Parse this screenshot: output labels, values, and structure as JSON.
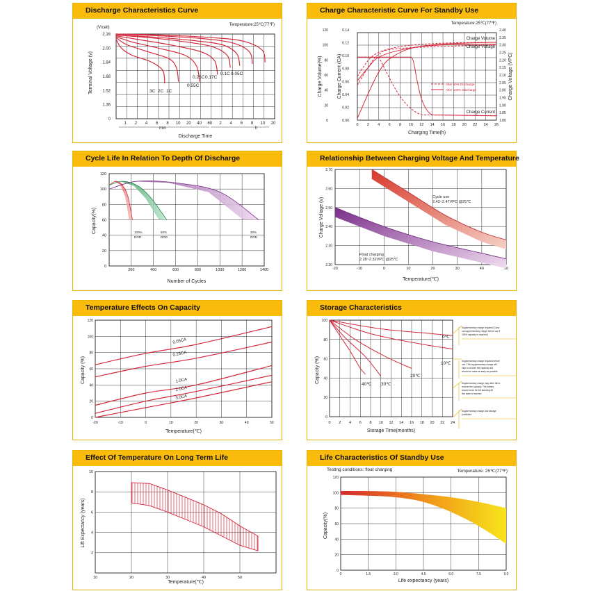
{
  "colors": {
    "header": "#f9bb0c",
    "border": "#e8b400",
    "curve": "#d6283c",
    "curve_light": "#e86a78",
    "grid": "#222222"
  },
  "panels": [
    {
      "title": "Discharge Characteristics Curve"
    },
    {
      "title": "Charge Characteristic Curve For Standby Use"
    },
    {
      "title": "Cycle Life In Relation To Depth Of Discharge"
    },
    {
      "title": "Relationship Between Charging Voltage And Temperature"
    },
    {
      "title": "Temperature Effects On Capacity"
    },
    {
      "title": "Storage Characteristics"
    },
    {
      "title": "Effect Of Temperature On Long Term Life"
    },
    {
      "title": "Life Characteristics Of Standby Use"
    }
  ],
  "chart_data": [
    {
      "id": "discharge",
      "type": "line",
      "title": "Discharge Characteristics Curve",
      "note": "Temperature:25℃(77℉)",
      "ylabel": "Terminal Voltage (v)",
      "yunit": "(V/cell)",
      "xlabel": "Discharge Time",
      "xunit_min": "min",
      "xunit_h": "h",
      "yticks": [
        "2.16",
        "2.00",
        "1.84",
        "1.68",
        "1.52",
        "1.36",
        "0"
      ],
      "xticks": [
        "1",
        "2",
        "4",
        "6",
        "8",
        "10",
        "20",
        "40",
        "60",
        "2",
        "4",
        "6",
        "8",
        "10",
        "20"
      ],
      "series": [
        {
          "name": "3C",
          "values": [
            [
              0,
              2.1
            ],
            [
              0.5,
              2.0
            ],
            [
              1.5,
              1.92
            ],
            [
              3.2,
              1.85
            ],
            [
              4.4,
              1.75
            ],
            [
              4.6,
              1.6
            ]
          ]
        },
        {
          "name": "2C",
          "values": [
            [
              0,
              2.12
            ],
            [
              1,
              2.04
            ],
            [
              3,
              1.96
            ],
            [
              5,
              1.88
            ],
            [
              5.7,
              1.78
            ],
            [
              5.9,
              1.62
            ]
          ]
        },
        {
          "name": "1C",
          "values": [
            [
              0,
              2.13
            ],
            [
              1.5,
              2.07
            ],
            [
              4,
              2.0
            ],
            [
              6.5,
              1.92
            ],
            [
              7.6,
              1.8
            ],
            [
              7.9,
              1.62
            ]
          ]
        },
        {
          "name": "0.55C",
          "values": [
            [
              0,
              2.14
            ],
            [
              2,
              2.1
            ],
            [
              5,
              2.04
            ],
            [
              8,
              1.96
            ],
            [
              9.3,
              1.86
            ],
            [
              9.6,
              1.7
            ]
          ]
        },
        {
          "name": "0.25C",
          "values": [
            [
              0,
              2.15
            ],
            [
              3,
              2.12
            ],
            [
              6,
              2.08
            ],
            [
              9,
              2.02
            ],
            [
              10.5,
              1.92
            ],
            [
              10.8,
              1.78
            ]
          ]
        },
        {
          "name": "0.17C",
          "values": [
            [
              0,
              2.15
            ],
            [
              3,
              2.13
            ],
            [
              7,
              2.09
            ],
            [
              10,
              2.04
            ],
            [
              11.4,
              1.94
            ],
            [
              11.7,
              1.8
            ]
          ]
        },
        {
          "name": "0.1C",
          "values": [
            [
              0,
              2.16
            ],
            [
              4,
              2.14
            ],
            [
              8,
              2.11
            ],
            [
              11,
              2.06
            ],
            [
              12.6,
              1.96
            ],
            [
              12.9,
              1.82
            ]
          ]
        },
        {
          "name": "0.05C",
          "values": [
            [
              0,
              2.16
            ],
            [
              4,
              2.15
            ],
            [
              9,
              2.12
            ],
            [
              12,
              2.08
            ],
            [
              13.8,
              1.98
            ],
            [
              14.1,
              1.84
            ]
          ]
        }
      ],
      "labels": [
        "3C",
        "2C",
        "1C",
        "0.55C",
        "0.25C",
        "0.17C",
        "0.1C",
        "0.05C"
      ]
    },
    {
      "id": "charge",
      "type": "line",
      "title": "Charge Characteristic Curve For Standby Use",
      "note": "Temperature:25℃(77℉)",
      "xlabel": "Charging Time(h)",
      "ylabel_left1": "Charge Volume(%)",
      "ylabel_left2": "Charge Current (CA)",
      "ylabel_right": "Charge Voltage (VPC)",
      "yticks_vol": [
        "120",
        "100",
        "80",
        "60",
        "40",
        "20",
        "0"
      ],
      "yticks_cur": [
        "0.14",
        "0.12",
        "0.10",
        "0.08",
        "0.06",
        "0.04",
        "0.02",
        "0.00"
      ],
      "yticks_volt": [
        "2.40",
        "2.35",
        "2.30",
        "2.25",
        "2.20",
        "2.15",
        "2.10",
        "2.05",
        "2.00",
        "1.95",
        "1.90",
        "1.85",
        "1.80"
      ],
      "xticks": [
        "0",
        "2",
        "4",
        "6",
        "8",
        "10",
        "12",
        "14",
        "16",
        "18",
        "20",
        "22",
        "24",
        "26"
      ],
      "annotations": [
        "Charge Volume",
        "Charge Voltage",
        "Charge Current"
      ],
      "legend": [
        "After 50% Discharge",
        "After 100% Discharge"
      ]
    },
    {
      "id": "cycle",
      "type": "area",
      "title": "Cycle Life In Relation To Depth Of Discharge",
      "ylabel": "Capacity(%)",
      "xlabel": "Number of Cycles",
      "yticks": [
        "120",
        "100",
        "80",
        "60",
        "40",
        "20",
        "0"
      ],
      "xticks": [
        "200",
        "400",
        "600",
        "800",
        "1000",
        "1200",
        "1400"
      ],
      "series": [
        {
          "name": "100% DOD",
          "values": [
            [
              0,
              105
            ],
            [
              60,
              110
            ],
            [
              120,
              105
            ],
            [
              170,
              90
            ],
            [
              210,
              60
            ]
          ]
        },
        {
          "name": "50% DOD",
          "values": [
            [
              0,
              105
            ],
            [
              120,
              110
            ],
            [
              260,
              104
            ],
            [
              380,
              88
            ],
            [
              520,
              60
            ]
          ]
        },
        {
          "name": "30% DOD",
          "values": [
            [
              0,
              100
            ],
            [
              250,
              110
            ],
            [
              600,
              108
            ],
            [
              1000,
              96
            ],
            [
              1350,
              60
            ]
          ]
        }
      ],
      "labels": [
        "100%\nDOD",
        "50%\nDOD",
        "30%\nDOD"
      ]
    },
    {
      "id": "chgvolt",
      "type": "area",
      "title": "Relationship Between Charging Voltage And Temperature",
      "ylabel": "Charge Voltage (v)",
      "xlabel": "Temperature(℃)",
      "yticks": [
        "2.70",
        "2.60",
        "2.50",
        "2.40",
        "2.30",
        "2.20"
      ],
      "xticks": [
        "-20",
        "-10",
        "0",
        "10",
        "20",
        "30",
        "40",
        "50"
      ],
      "series": [
        {
          "name": "Cycle use",
          "values": [
            [
              -5,
              2.7
            ],
            [
              10,
              2.58
            ],
            [
              25,
              2.46
            ],
            [
              40,
              2.37
            ],
            [
              50,
              2.33
            ]
          ]
        },
        {
          "name": "Float charging",
          "values": [
            [
              -20,
              2.5
            ],
            [
              0,
              2.4
            ],
            [
              20,
              2.32
            ],
            [
              40,
              2.26
            ],
            [
              50,
              2.23
            ]
          ]
        }
      ],
      "labels": [
        "Cycle use",
        "2.43~2.47VPC @25℃",
        "Float charging",
        "2.28~2.32VPC @25℃"
      ]
    },
    {
      "id": "tempcap",
      "type": "line",
      "title": "Temperature Effects On Capacity",
      "ylabel": "Capacity (%)",
      "xlabel": "Temperature(℃)",
      "yticks": [
        "120",
        "100",
        "80",
        "60",
        "40",
        "20",
        "0"
      ],
      "xticks": [
        "-20",
        "-10",
        "0",
        "10",
        "20",
        "30",
        "40",
        "50"
      ],
      "series": [
        {
          "name": "0.05CA",
          "values": [
            [
              -20,
              65
            ],
            [
              0,
              79
            ],
            [
              20,
              90
            ],
            [
              50,
              112
            ]
          ]
        },
        {
          "name": "0.25CA",
          "values": [
            [
              -20,
              50
            ],
            [
              0,
              63
            ],
            [
              20,
              73
            ],
            [
              50,
              93
            ]
          ]
        },
        {
          "name": "1.0CA",
          "values": [
            [
              -20,
              15
            ],
            [
              0,
              30
            ],
            [
              20,
              40
            ],
            [
              50,
              64
            ]
          ]
        },
        {
          "name": "2.0CA",
          "values": [
            [
              -20,
              5
            ],
            [
              0,
              20
            ],
            [
              20,
              32
            ],
            [
              50,
              52
            ]
          ]
        },
        {
          "name": "3.0CA",
          "values": [
            [
              -20,
              0
            ],
            [
              0,
              12
            ],
            [
              20,
              24
            ],
            [
              50,
              44
            ]
          ]
        }
      ],
      "labels": [
        "0.05CA",
        "0.25CA",
        "1.0CA",
        "2.0CA",
        "3.0CA"
      ]
    },
    {
      "id": "storage",
      "type": "line",
      "title": "Storage Characteristics",
      "ylabel": "Capacity (%)",
      "xlabel": "Storage Time(months)",
      "yticks": [
        "100",
        "80",
        "60",
        "40",
        "20",
        "0"
      ],
      "xticks": [
        "0",
        "2",
        "4",
        "6",
        "8",
        "10",
        "12",
        "14",
        "16",
        "18",
        "20",
        "22",
        "24"
      ],
      "series": [
        {
          "name": "0℃",
          "values": [
            [
              0,
              100
            ],
            [
              10,
              91
            ],
            [
              20,
              86
            ],
            [
              24,
              84
            ]
          ]
        },
        {
          "name": "10℃",
          "values": [
            [
              0,
              100
            ],
            [
              8,
              86
            ],
            [
              16,
              77
            ],
            [
              24,
              70
            ]
          ]
        },
        {
          "name": "20℃",
          "values": [
            [
              0,
              100
            ],
            [
              5,
              80
            ],
            [
              11,
              62
            ],
            [
              16,
              50
            ]
          ]
        },
        {
          "name": "30℃",
          "values": [
            [
              0,
              100
            ],
            [
              3,
              82
            ],
            [
              7,
              62
            ],
            [
              10,
              42
            ]
          ]
        },
        {
          "name": "40℃",
          "values": [
            [
              0,
              100
            ],
            [
              2,
              84
            ],
            [
              4,
              68
            ],
            [
              6,
              50
            ],
            [
              7,
              44
            ]
          ]
        }
      ],
      "labels": [
        "0℃",
        "10℃",
        "20℃",
        "30℃",
        "40℃"
      ],
      "notes": [
        "Supplementary charge required (Carry out supplementary charge before use if 100% capacity is required)",
        "Supplementary charge required before use. This supplementary charge will help to recover the capacity and should be made as early as possible",
        "Supplementary charge may often fail to recover the capacity. The battery should never be left standing till this state is reached",
        "Supplementary charge and storage prohibited"
      ]
    },
    {
      "id": "longlife",
      "type": "area",
      "title": "Effect Of Temperature On Long Term Life",
      "ylabel": "Lift Expectancy (years)",
      "xlabel": "Temperature(℃)",
      "yticks": [
        "10",
        "8",
        "6",
        "4",
        "2"
      ],
      "xticks": [
        "10",
        "20",
        "30",
        "40",
        "50"
      ],
      "band_upper": [
        [
          10,
          9.8
        ],
        [
          15,
          9.7
        ],
        [
          20,
          9.0
        ],
        [
          25,
          8.2
        ],
        [
          30,
          7.4
        ],
        [
          35,
          6.4
        ],
        [
          40,
          5.1
        ],
        [
          45,
          4.0
        ]
      ],
      "band_lower": [
        [
          10,
          7.6
        ],
        [
          15,
          7.3
        ],
        [
          20,
          6.6
        ],
        [
          25,
          5.8
        ],
        [
          30,
          5.0
        ],
        [
          35,
          4.0
        ],
        [
          40,
          3.0
        ],
        [
          45,
          2.4
        ]
      ]
    },
    {
      "id": "standbylife",
      "type": "area",
      "title": "Life Characteristics Of Standby Use",
      "note_left": "Testing conditions: float charging",
      "note_right": "Temperature: 25℃(77℉)",
      "ylabel": "Capacity(%)",
      "xlabel": "Life expectancy (years)",
      "yticks": [
        "120",
        "100",
        "80",
        "60",
        "40",
        "20",
        "0"
      ],
      "xticks": [
        "0",
        "1.5",
        "3.0",
        "4.5",
        "6.0",
        "7.5",
        "9.0"
      ],
      "band_upper": [
        [
          0,
          102
        ],
        [
          1.5,
          102
        ],
        [
          3.0,
          101
        ],
        [
          4.5,
          98
        ],
        [
          6.0,
          94
        ],
        [
          7.5,
          88
        ],
        [
          9.0,
          80
        ]
      ],
      "band_lower": [
        [
          0,
          97
        ],
        [
          1.5,
          96
        ],
        [
          3.0,
          94
        ],
        [
          4.5,
          88
        ],
        [
          6.0,
          75
        ],
        [
          7.5,
          57
        ],
        [
          9.0,
          34
        ]
      ]
    }
  ]
}
